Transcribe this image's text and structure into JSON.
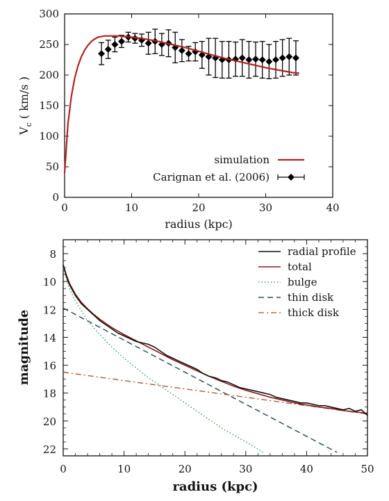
{
  "chart_data": [
    {
      "type": "line",
      "xlabel": "radius (kpc)",
      "ylabel_main": "V",
      "ylabel_sub": "c",
      "ylabel_rest": " ( km/s )",
      "xlim": [
        0,
        40
      ],
      "ylim": [
        0,
        300
      ],
      "xticks": [
        0,
        10,
        20,
        30,
        40
      ],
      "yticks": [
        0,
        50,
        100,
        150,
        200,
        250,
        300
      ],
      "grid": false,
      "legend_position": "bottom-right",
      "series": [
        {
          "name": "simulation",
          "kind": "line",
          "color": "#b22222",
          "x": [
            0,
            0.5,
            1,
            1.5,
            2,
            2.5,
            3,
            3.5,
            4,
            4.5,
            5,
            5.5,
            6,
            7,
            8,
            9,
            10,
            12,
            14,
            16,
            18,
            20,
            22,
            24,
            26,
            28,
            30,
            32,
            34,
            35
          ],
          "y": [
            40,
            120,
            165,
            195,
            215,
            230,
            241,
            249,
            255,
            259,
            262,
            263,
            264,
            264,
            264,
            263,
            262,
            259,
            255,
            250,
            245,
            239,
            233,
            227,
            222,
            217,
            212,
            208,
            204,
            203
          ]
        },
        {
          "name": "Carignan et al. (2006)",
          "kind": "errorbar",
          "color": "#000000",
          "x": [
            5.5,
            6.5,
            7.5,
            8.5,
            9.5,
            10.5,
            11.5,
            12.5,
            13.5,
            14.5,
            15.5,
            16.5,
            17.5,
            18.5,
            19.5,
            20.5,
            21.5,
            22.5,
            23.5,
            24.5,
            25.5,
            26.5,
            27.5,
            28.5,
            29.5,
            30.5,
            31.5,
            32.5,
            33.5,
            34.5
          ],
          "y": [
            235,
            242,
            250,
            255,
            262,
            260,
            257,
            252,
            255,
            250,
            252,
            245,
            240,
            235,
            238,
            233,
            230,
            228,
            225,
            225,
            226,
            228,
            225,
            226,
            225,
            222,
            225,
            228,
            230,
            228
          ],
          "err": [
            18,
            15,
            12,
            10,
            8,
            8,
            10,
            18,
            20,
            18,
            22,
            25,
            18,
            12,
            15,
            22,
            30,
            32,
            30,
            30,
            28,
            30,
            30,
            28,
            30,
            28,
            30,
            30,
            30,
            28
          ]
        }
      ]
    },
    {
      "type": "line",
      "xlabel": "radius (kpc)",
      "ylabel": "magnitude",
      "xlim": [
        0,
        50
      ],
      "ylim": [
        22.5,
        7
      ],
      "y_inverted": true,
      "xticks": [
        0,
        10,
        20,
        30,
        40,
        50
      ],
      "yticks": [
        8,
        10,
        12,
        14,
        16,
        18,
        20,
        22
      ],
      "grid": false,
      "legend_position": "top-right",
      "series": [
        {
          "name": "radial profile",
          "style": "solid",
          "color": "#111111",
          "x": [
            0,
            0.5,
            1,
            2,
            3,
            4,
            5,
            6,
            7,
            8,
            9,
            10,
            11,
            12,
            12.5,
            13,
            14,
            15,
            16,
            17,
            18,
            19,
            20,
            21,
            22,
            23,
            24,
            25,
            26,
            27,
            28,
            29,
            30,
            31,
            32,
            33,
            34,
            35,
            36,
            37,
            38,
            39,
            40,
            41,
            42,
            43,
            44,
            45,
            46,
            47,
            48,
            49,
            50
          ],
          "y": [
            8.8,
            9.6,
            10.2,
            11.0,
            11.6,
            12.0,
            12.4,
            12.8,
            13.1,
            13.4,
            13.7,
            13.9,
            14.1,
            14.3,
            14.35,
            14.4,
            14.5,
            14.7,
            15.0,
            15.3,
            15.5,
            15.7,
            15.9,
            16.1,
            16.3,
            16.6,
            16.8,
            16.9,
            17.1,
            17.2,
            17.4,
            17.6,
            17.7,
            17.8,
            17.9,
            18.0,
            18.1,
            18.3,
            18.4,
            18.5,
            18.6,
            18.7,
            18.7,
            18.8,
            18.9,
            18.9,
            19.0,
            19.1,
            19.2,
            19.1,
            19.3,
            19.2,
            19.6
          ]
        },
        {
          "name": "total",
          "style": "solid",
          "color": "#8b1a1a",
          "x": [
            0,
            0.5,
            1,
            2,
            3,
            4,
            5,
            6,
            7,
            8,
            9,
            10,
            12,
            14,
            16,
            18,
            20,
            22,
            24,
            26,
            28,
            30,
            32,
            34,
            36,
            38,
            40,
            42,
            44,
            46,
            48,
            50
          ],
          "y": [
            8.8,
            9.5,
            10.1,
            10.9,
            11.5,
            11.95,
            12.35,
            12.7,
            13.0,
            13.3,
            13.55,
            13.8,
            14.25,
            14.7,
            15.15,
            15.6,
            16.0,
            16.4,
            16.8,
            17.15,
            17.5,
            17.8,
            18.05,
            18.3,
            18.5,
            18.7,
            18.85,
            19.0,
            19.1,
            19.25,
            19.35,
            19.45
          ]
        },
        {
          "name": "bulge",
          "style": "dotted",
          "color": "#4aa06a",
          "x": [
            0,
            1,
            2,
            4,
            6,
            8,
            10,
            12,
            14,
            16,
            18,
            20,
            22,
            24,
            26,
            28,
            30,
            32,
            33
          ],
          "y": [
            9.0,
            10.5,
            11.4,
            12.8,
            13.8,
            14.7,
            15.5,
            16.2,
            16.9,
            17.5,
            18.1,
            18.7,
            19.3,
            19.9,
            20.5,
            21.0,
            21.5,
            22.0,
            22.3
          ]
        },
        {
          "name": "thin disk",
          "style": "dashed",
          "color": "#2f4f4f",
          "x": [
            0,
            5,
            10,
            15,
            20,
            25,
            30,
            35,
            40,
            45
          ],
          "y": [
            11.9,
            13.05,
            14.2,
            15.35,
            16.5,
            17.65,
            18.8,
            19.95,
            21.1,
            22.25
          ]
        },
        {
          "name": "thick disk",
          "style": "dashdot",
          "color": "#a0522d",
          "x": [
            0,
            10,
            20,
            30,
            40,
            50
          ],
          "y": [
            16.5,
            17.1,
            17.7,
            18.3,
            18.9,
            19.5
          ]
        }
      ]
    }
  ]
}
